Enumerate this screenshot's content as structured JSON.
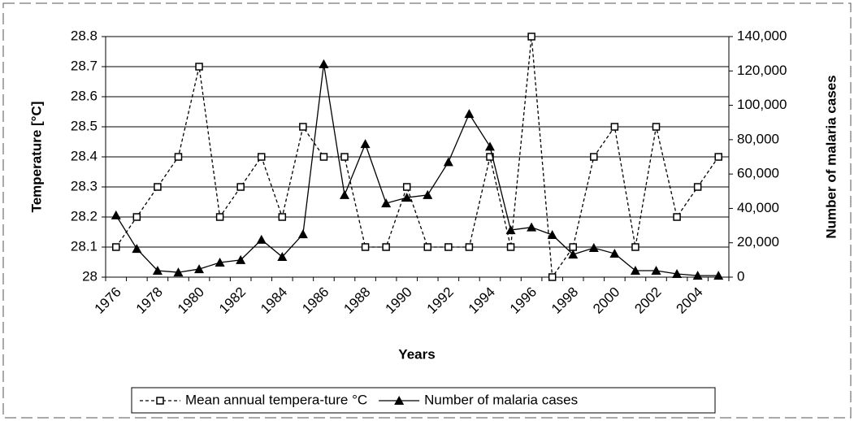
{
  "chart_data": {
    "type": "line",
    "xlabel": "Years",
    "ylabel": "Temperature [°C]",
    "y2label": "Number of malaria cases",
    "categories": [
      "1976",
      null,
      "1978",
      null,
      "1980",
      null,
      "1982",
      null,
      "1984",
      null,
      "1986",
      null,
      "1988",
      null,
      "1990",
      null,
      "1992",
      null,
      "1994",
      null,
      "1996",
      null,
      "1998",
      null,
      "2000",
      null,
      "2002",
      null,
      "2004",
      null
    ],
    "ylim": [
      28,
      28.8
    ],
    "yticks": [
      28,
      28.1,
      28.2,
      28.3,
      28.4,
      28.5,
      28.6,
      28.7,
      28.8
    ],
    "y2lim": [
      0,
      140000
    ],
    "y2ticks": [
      0,
      {
        "value": 20000,
        "label": "20,000"
      },
      {
        "value": 40000,
        "label": "40,000"
      },
      {
        "value": 60000,
        "label": "60,000"
      },
      {
        "value": 80000,
        "label": "80,000"
      },
      {
        "value": 100000,
        "label": "100,000"
      },
      {
        "value": 120000,
        "label": "120,000"
      },
      {
        "value": 140000,
        "label": "140,000"
      }
    ],
    "grid": true,
    "legend": "bottom",
    "series": [
      {
        "name": "Mean annual tempera-ture °C",
        "color": "#000000",
        "marker": "square",
        "dashed": true,
        "values": [
          28.1,
          28.2,
          28.3,
          28.4,
          28.7,
          28.2,
          28.3,
          28.4,
          28.2,
          28.5,
          28.4,
          28.4,
          28.1,
          28.1,
          28.3,
          28.1,
          28.1,
          28.1,
          28.4,
          28.1,
          28.8,
          28.0,
          28.1,
          28.4,
          28.5,
          28.1,
          28.5,
          28.2,
          28.3,
          28.4
        ]
      },
      {
        "name": "Number of malaria cases",
        "color": "#000000",
        "marker": "triangle",
        "dashed": false,
        "axis": "y2",
        "values": [
          36000,
          16500,
          3800,
          2800,
          4700,
          8500,
          10000,
          21800,
          11800,
          25000,
          124000,
          47800,
          77500,
          43000,
          46300,
          47800,
          67000,
          95000,
          76000,
          27400,
          29000,
          24600,
          13200,
          17000,
          13700,
          3800,
          3800,
          1900,
          900,
          900
        ]
      }
    ]
  }
}
